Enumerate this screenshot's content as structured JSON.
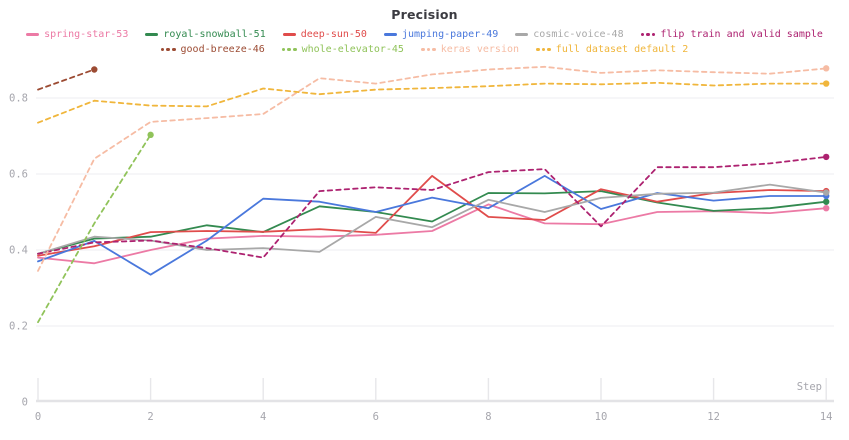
{
  "title": "Precision",
  "axes": {
    "x_label": "Step",
    "x_ticks": [
      0,
      2,
      4,
      6,
      8,
      10,
      12,
      14
    ],
    "y_ticks": [
      {
        "value": 0,
        "label": "0"
      },
      {
        "value": 0.2,
        "label": "0.2"
      },
      {
        "value": 0.4,
        "label": "0.4"
      },
      {
        "value": 0.6,
        "label": "0.6"
      },
      {
        "value": 0.8,
        "label": "0.8"
      }
    ],
    "gridline_values": [
      0.2,
      0.4,
      0.6,
      0.8
    ]
  },
  "legend": {
    "row_break": 6
  },
  "colors": {
    "title_text": "#3b3b41",
    "axis_text": "#a6a6ad",
    "gridline": "#ededf0",
    "baseline": "#e3e3e6",
    "tick": "#e7e7ea",
    "background": "#ffffff"
  },
  "chart_data": {
    "type": "line",
    "title": "Precision",
    "xlabel": "Step",
    "x_range": [
      0,
      14
    ],
    "y_range_displayed": [
      0,
      0.92
    ],
    "grid": "horizontal",
    "legend_position": "top",
    "x_step": 1,
    "series": [
      {
        "name": "spring-star-53",
        "color": "#ec7aa5",
        "dashed": false,
        "values": [
          0.38,
          0.365,
          0.4,
          0.43,
          0.437,
          0.435,
          0.44,
          0.45,
          0.52,
          0.47,
          0.468,
          0.5,
          0.502,
          0.497,
          0.51
        ]
      },
      {
        "name": "royal-snowball-51",
        "color": "#338a50",
        "dashed": false,
        "values": [
          0.39,
          0.43,
          0.435,
          0.465,
          0.447,
          0.515,
          0.5,
          0.475,
          0.55,
          0.549,
          0.555,
          0.525,
          0.503,
          0.51,
          0.527
        ]
      },
      {
        "name": "deep-sun-50",
        "color": "#e04c4b",
        "dashed": false,
        "values": [
          0.385,
          0.41,
          0.447,
          0.45,
          0.448,
          0.455,
          0.445,
          0.595,
          0.487,
          0.479,
          0.56,
          0.527,
          0.55,
          0.558,
          0.555
        ]
      },
      {
        "name": "jumping-paper-49",
        "color": "#4a78dc",
        "dashed": false,
        "values": [
          0.37,
          0.424,
          0.335,
          0.425,
          0.535,
          0.527,
          0.5,
          0.538,
          0.51,
          0.595,
          0.508,
          0.55,
          0.53,
          0.542,
          0.542
        ]
      },
      {
        "name": "cosmic-voice-48",
        "color": "#a8a8a8",
        "dashed": false,
        "values": [
          0.39,
          0.435,
          0.425,
          0.4,
          0.405,
          0.395,
          0.487,
          0.46,
          0.532,
          0.5,
          0.537,
          0.548,
          0.551,
          0.572,
          0.551
        ]
      },
      {
        "name": "flip train and valid sample",
        "color": "#ad2270",
        "dashed": true,
        "values": [
          0.39,
          0.42,
          0.425,
          0.405,
          0.38,
          0.555,
          0.565,
          0.558,
          0.605,
          0.613,
          0.462,
          0.618,
          0.618,
          0.628,
          0.645
        ]
      },
      {
        "name": "good-breeze-46",
        "color": "#9c4b33",
        "dashed": true,
        "values": [
          0.822,
          0.875
        ]
      },
      {
        "name": "whole-elevator-45",
        "color": "#90c35a",
        "dashed": true,
        "values": [
          0.21,
          0.47,
          0.703
        ]
      },
      {
        "name": "keras version",
        "color": "#f6bca4",
        "dashed": true,
        "values": [
          0.345,
          0.64,
          0.737,
          0.747,
          0.758,
          0.852,
          0.838,
          0.862,
          0.875,
          0.882,
          0.866,
          0.873,
          0.868,
          0.864,
          0.878
        ]
      },
      {
        "name": "full dataset default 2",
        "color": "#f0b63c",
        "dashed": true,
        "values": [
          0.735,
          0.793,
          0.78,
          0.778,
          0.825,
          0.81,
          0.822,
          0.826,
          0.831,
          0.838,
          0.836,
          0.84,
          0.833,
          0.838,
          0.838
        ]
      }
    ]
  }
}
